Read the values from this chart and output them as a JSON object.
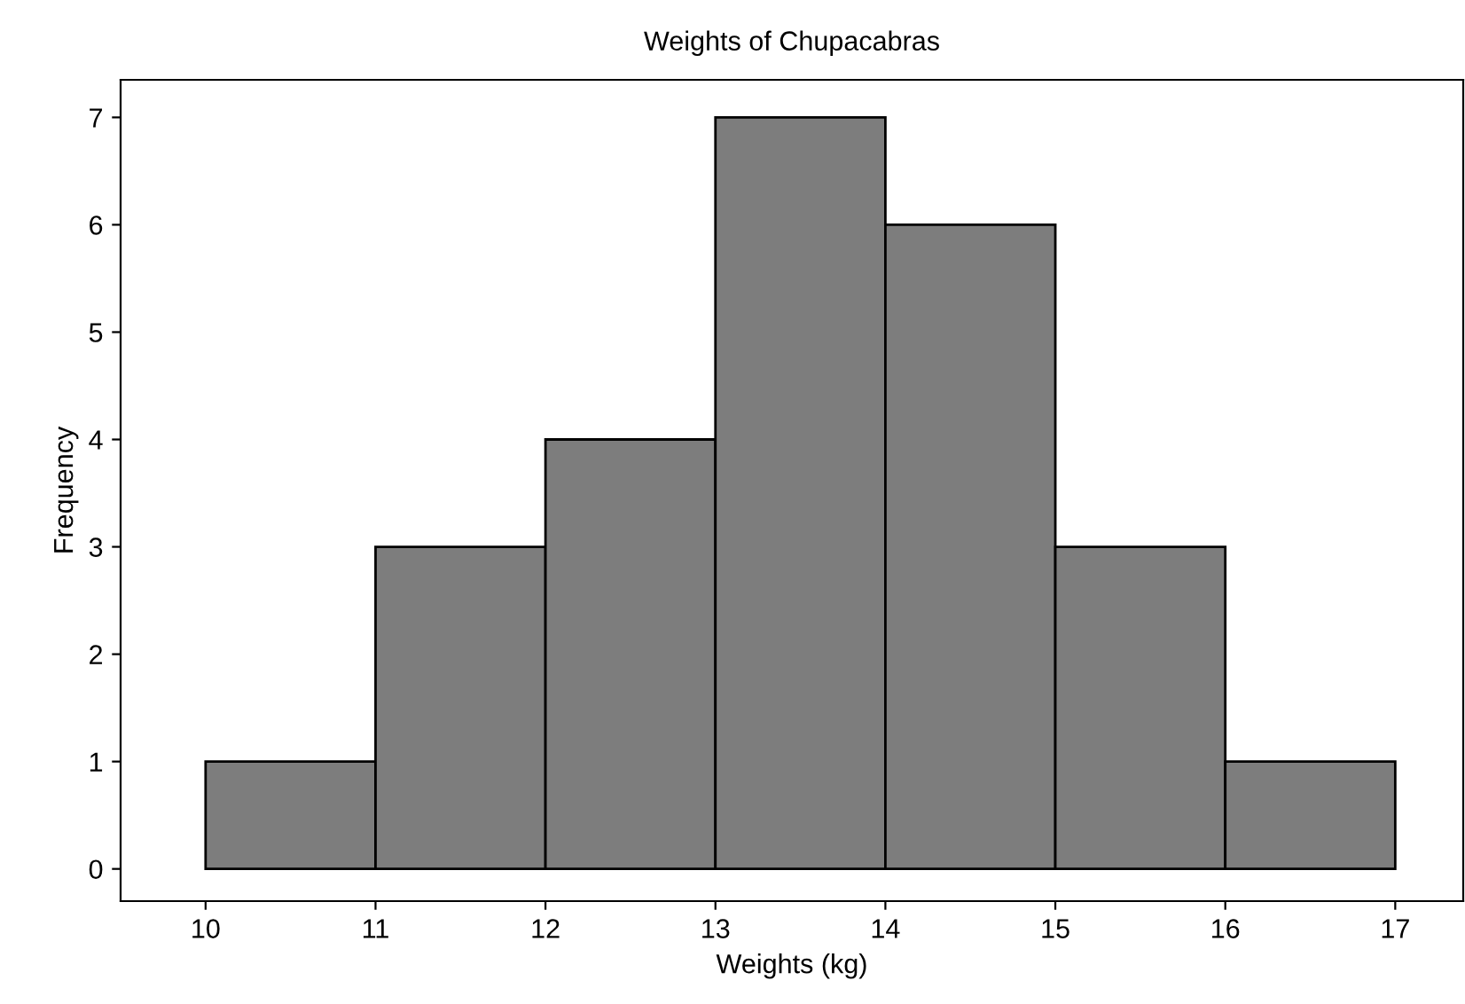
{
  "chart_data": {
    "type": "histogram",
    "title": "Weights of Chupacabras",
    "xlabel": "Weights (kg)",
    "ylabel": "Frequency",
    "bins": [
      10,
      11,
      12,
      13,
      14,
      15,
      16,
      17
    ],
    "values": [
      1,
      3,
      4,
      7,
      6,
      3,
      1
    ],
    "color": "#7d7d7d",
    "xlim": [
      9.5,
      17.4
    ],
    "ylim": [
      -0.3,
      7.35
    ],
    "xticks": [
      10,
      11,
      12,
      13,
      14,
      15,
      16,
      17
    ],
    "yticks": [
      0,
      1,
      2,
      3,
      4,
      5,
      6,
      7
    ],
    "grid": false
  }
}
